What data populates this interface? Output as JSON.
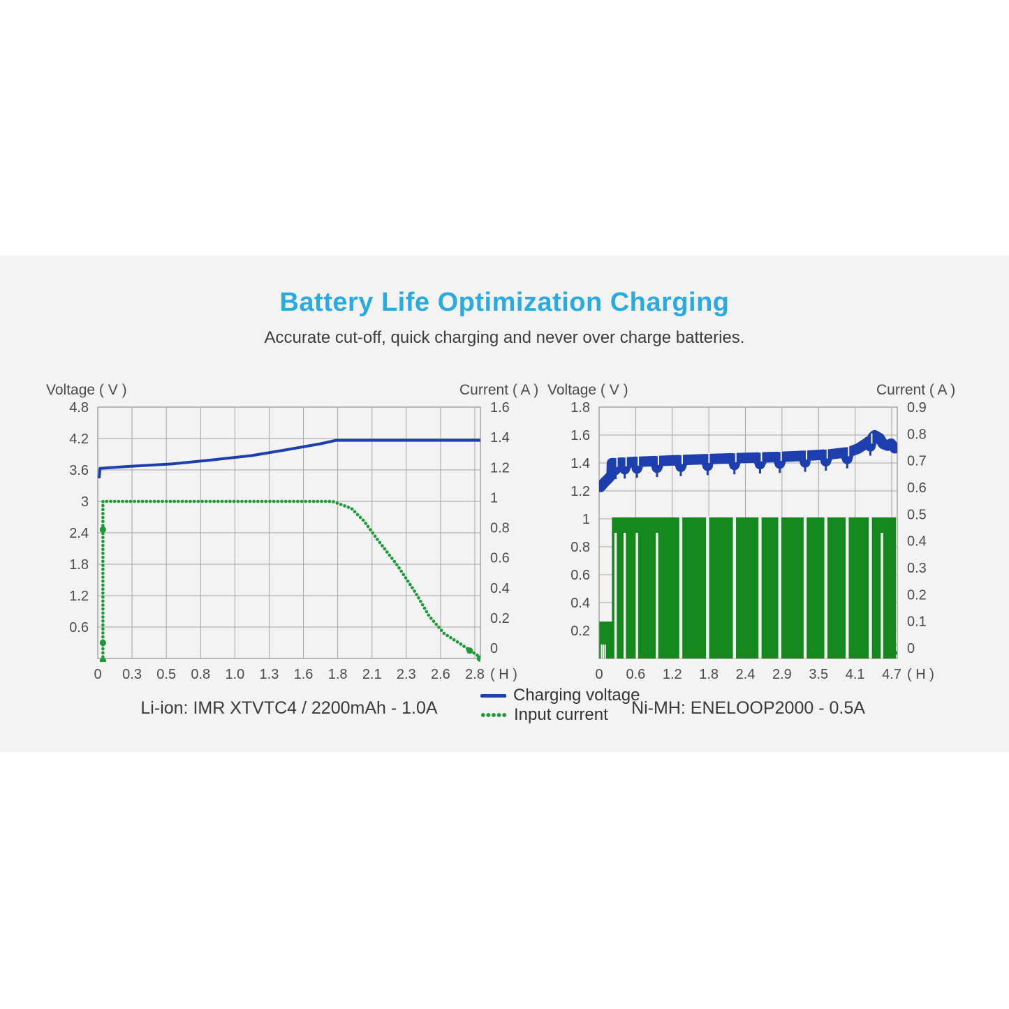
{
  "page": {
    "background": "#ffffff",
    "band_color": "#f3f3f3"
  },
  "header": {
    "title": "Battery Life Optimization Charging",
    "title_color": "#29abe2",
    "subtitle": "Accurate cut-off, quick charging and never over charge batteries."
  },
  "legend": {
    "items": [
      {
        "label": "Charging voltage",
        "color": "#1d3fae",
        "style": "solid"
      },
      {
        "label": "Input current",
        "color": "#1a9b33",
        "style": "dotted"
      }
    ]
  },
  "colors": {
    "grid": "#a5a5a5",
    "plot_border": "#999999",
    "axis_text": "#4a4a4a",
    "blue_line": "#1d3fae",
    "green_dotted": "#1a9b33",
    "green_block": "#12881d"
  },
  "chart_data": [
    {
      "name": "li-ion",
      "type": "line",
      "caption": "Li-ion: IMR XTVTC4 / 2200mAh - 1.0A",
      "left_axis": {
        "label": "Voltage ( V )",
        "ticks": [
          "4.8",
          "4.2",
          "3.6",
          "3",
          "2.4",
          "1.8",
          "1.2",
          "0.6"
        ],
        "max": 4.8,
        "intervals": 8
      },
      "right_axis": {
        "label": "Current ( A )",
        "ticks": [
          "1.6",
          "1.4",
          "1.2",
          "1",
          "0.8",
          "0.6",
          "0.4",
          "0.2",
          "0"
        ],
        "max": 1.6
      },
      "x_axis": {
        "ticks": [
          "0",
          "0.3",
          "0.5",
          "0.8",
          "1.0",
          "1.3",
          "1.6",
          "1.8",
          "2.1",
          "2.3",
          "2.6",
          "2.8"
        ],
        "values": [
          0,
          0.3,
          0.5,
          0.8,
          1.0,
          1.3,
          1.6,
          1.8,
          2.1,
          2.3,
          2.6,
          2.8
        ],
        "unit": "( H )"
      },
      "legend_position": "between-charts",
      "grid": true,
      "series": [
        {
          "name": "Charging voltage",
          "axis": "left",
          "style": "line",
          "color": "#1d3fae",
          "width": 4,
          "points": [
            [
              0.012,
              3.44
            ],
            [
              0.02,
              3.63
            ],
            [
              0.25,
              3.665
            ],
            [
              0.55,
              3.715
            ],
            [
              0.85,
              3.785
            ],
            [
              1.15,
              3.875
            ],
            [
              1.45,
              3.985
            ],
            [
              1.7,
              4.1
            ],
            [
              1.79,
              4.165
            ],
            [
              2.84,
              4.165
            ]
          ]
        },
        {
          "name": "Input current",
          "axis": "right",
          "style": "dotted",
          "color": "#1a9b33",
          "width": 4.6,
          "points": [
            [
              0.045,
              -0.015
            ],
            [
              0.045,
              1.0
            ],
            [
              1.77,
              1.0
            ],
            [
              1.92,
              0.955
            ],
            [
              2.03,
              0.875
            ],
            [
              2.13,
              0.76
            ],
            [
              2.25,
              0.59
            ],
            [
              2.38,
              0.42
            ],
            [
              2.5,
              0.27
            ],
            [
              2.62,
              0.16
            ],
            [
              2.72,
              0.09
            ],
            [
              2.78,
              0.045
            ],
            [
              2.83,
              0.01
            ]
          ],
          "markers": [
            [
              0.045,
              -0.015
            ],
            [
              0.045,
              0.1
            ],
            [
              0.045,
              0.82
            ],
            [
              2.77,
              0.05
            ],
            [
              2.83,
              0.0
            ]
          ]
        }
      ]
    },
    {
      "name": "ni-mh",
      "type": "line",
      "caption": "Ni-MH: ENELOOP2000 - 0.5A",
      "left_axis": {
        "label": "Voltage ( V )",
        "ticks": [
          "1.8",
          "1.6",
          "1.4",
          "1.2",
          "1",
          "0.8",
          "0.6",
          "0.4",
          "0.2"
        ],
        "max": 1.8,
        "intervals": 9
      },
      "right_axis": {
        "label": "Current ( A )",
        "ticks": [
          "0.9",
          "0.8",
          "0.7",
          "0.6",
          "0.5",
          "0.4",
          "0.3",
          "0.2",
          "0.1",
          "0"
        ],
        "max": 0.9
      },
      "x_axis": {
        "ticks": [
          "0",
          "0.6",
          "1.2",
          "1.8",
          "2.4",
          "2.9",
          "3.5",
          "4.1",
          "4.7"
        ],
        "values": [
          0,
          0.6,
          1.2,
          1.8,
          2.4,
          2.9,
          3.5,
          4.1,
          4.7
        ],
        "unit": "( H )"
      },
      "grid": true,
      "series": [
        {
          "name": "Charging voltage",
          "axis": "left",
          "style": "band",
          "color": "#1d3fae",
          "width": 15,
          "intro": [
            [
              0.023,
              1.228
            ],
            [
              0.09,
              1.262
            ],
            [
              0.16,
              1.292
            ],
            [
              0.205,
              1.315
            ]
          ],
          "trend": [
            [
              0.21,
              1.398
            ],
            [
              0.6,
              1.408
            ],
            [
              1.2,
              1.418
            ],
            [
              1.8,
              1.428
            ],
            [
              2.4,
              1.436
            ],
            [
              2.9,
              1.444
            ],
            [
              3.3,
              1.452
            ],
            [
              3.7,
              1.462
            ],
            [
              4.0,
              1.478
            ],
            [
              4.15,
              1.503
            ],
            [
              4.3,
              1.545
            ],
            [
              4.42,
              1.598
            ],
            [
              4.5,
              1.578
            ],
            [
              4.56,
              1.536
            ],
            [
              4.63,
              1.524
            ],
            [
              4.69,
              1.538
            ],
            [
              4.75,
              1.505
            ]
          ],
          "notches": [
            0.27,
            0.42,
            0.62,
            0.95,
            1.34,
            1.78,
            2.22,
            2.6,
            2.87,
            3.28,
            3.62,
            3.97,
            4.35
          ],
          "notch_depth": 0.048
        },
        {
          "name": "Input current",
          "axis": "right",
          "style": "pulses",
          "color": "#12881d",
          "block": {
            "start": 0.21,
            "end": 4.77,
            "level": 0.505
          },
          "stub": {
            "start": 0.004,
            "end": 0.229,
            "level": 0.132
          },
          "full_gaps": [
            1.34,
            1.78,
            2.22,
            2.6,
            2.87,
            3.28,
            3.62,
            3.97,
            4.35
          ],
          "partial_slits": [
            0.27,
            0.42,
            0.62,
            0.95,
            4.54
          ],
          "slit_top": 0.45,
          "stub_marks": [
            0.04,
            0.07,
            0.1
          ],
          "end_dots": [
            [
              4.69,
              0.16
            ],
            [
              4.705,
              0.12
            ],
            [
              4.72,
              0.085
            ],
            [
              4.735,
              0.05
            ],
            [
              4.75,
              0.02
            ]
          ]
        }
      ]
    }
  ]
}
